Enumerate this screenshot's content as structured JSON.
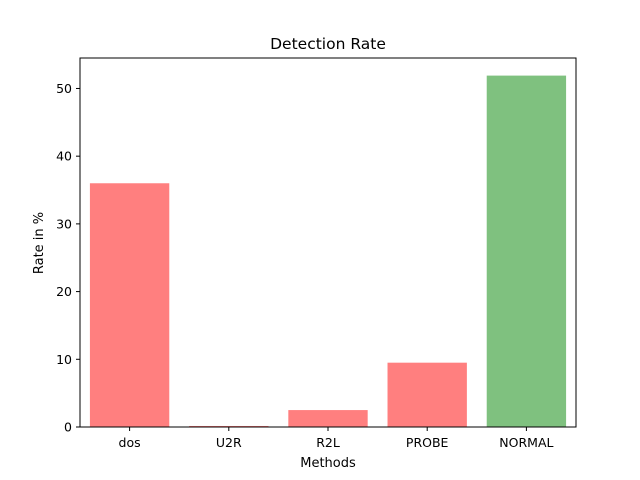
{
  "chart_data": {
    "type": "bar",
    "title": "Detection Rate",
    "xlabel": "Methods",
    "ylabel": "Rate in %",
    "categories": [
      "dos",
      "U2R",
      "R2L",
      "PROBE",
      "NORMAL"
    ],
    "values": [
      36.0,
      0.15,
      2.5,
      9.5,
      51.9
    ],
    "colors": [
      "#ff7f7f",
      "#ff7f7f",
      "#ff7f7f",
      "#ff7f7f",
      "#7fc17f"
    ],
    "ylim": [
      0,
      54.5
    ],
    "yticks": [
      0,
      10,
      20,
      30,
      40,
      50
    ],
    "grid": false,
    "legend": "none"
  }
}
